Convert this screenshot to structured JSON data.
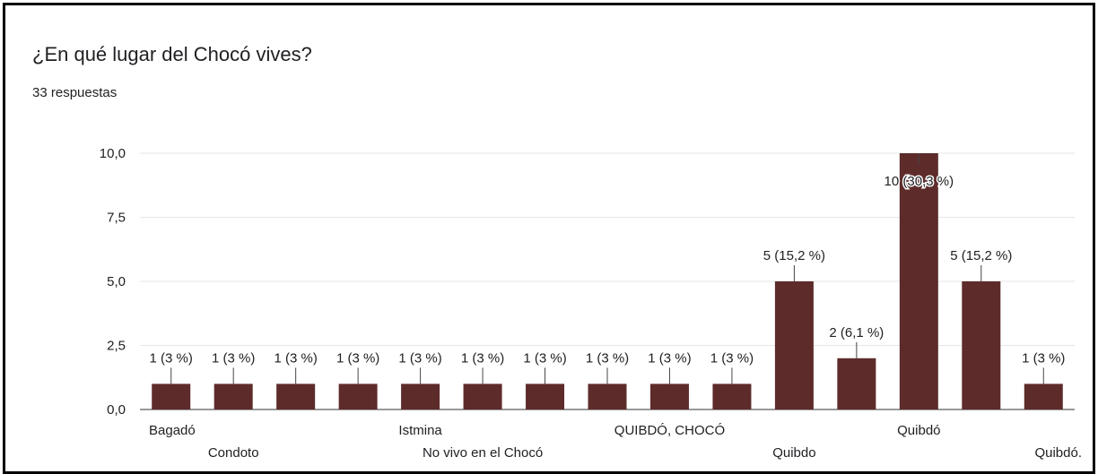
{
  "card": {
    "title": "¿En qué lugar del Chocó vives?",
    "response_count": "33 respuestas"
  },
  "chart_data": {
    "type": "bar",
    "title": "¿En qué lugar del Chocó vives?",
    "categories": [
      "Bagadó",
      "Condoto",
      "",
      "",
      "Istmina",
      "No vivo en el Chocó",
      "",
      "",
      "QUIBDÓ, CHOCÓ",
      "",
      "Quibdo",
      "",
      "Quibdó",
      "",
      "Quibdó."
    ],
    "values": [
      1,
      1,
      1,
      1,
      1,
      1,
      1,
      1,
      1,
      1,
      5,
      2,
      10,
      5,
      1
    ],
    "data_labels": [
      "1 (3 %)",
      "1 (3 %)",
      "1 (3 %)",
      "1 (3 %)",
      "1 (3 %)",
      "1 (3 %)",
      "1 (3 %)",
      "1 (3 %)",
      "1 (3 %)",
      "1 (3 %)",
      "5 (15,2 %)",
      "2 (6,1 %)",
      "10 (30,3 %)",
      "5 (15,2 %)",
      "1 (3 %)"
    ],
    "y_ticks": [
      "0,0",
      "2,5",
      "5,0",
      "7,5",
      "10,0"
    ],
    "y_tick_values": [
      0,
      2.5,
      5,
      7.5,
      10
    ],
    "ylim": [
      0,
      10
    ],
    "xlabel": "",
    "ylabel": "",
    "grid": true,
    "bar_color": "#5e2b2b"
  }
}
